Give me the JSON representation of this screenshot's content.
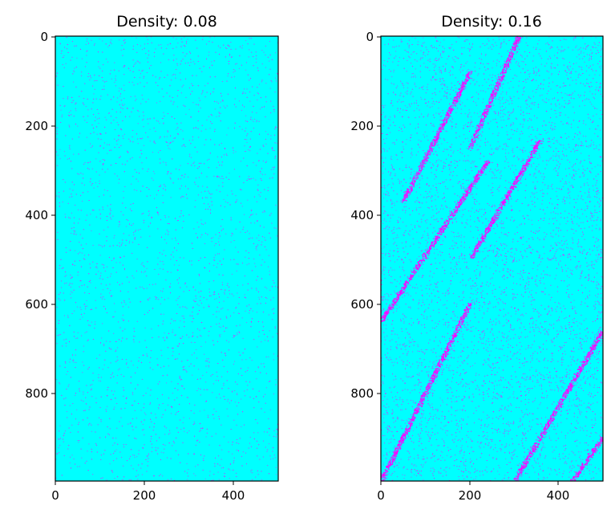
{
  "figure": {
    "background": "#ffffff"
  },
  "chart_data": [
    {
      "type": "heatmap",
      "title": "Density: 0.08",
      "density": 0.08,
      "colormap": {
        "empty": "#00ffff",
        "occupied": "#ff00ff"
      },
      "x_range": [
        0,
        500
      ],
      "y_range": [
        1000,
        0
      ],
      "y_inverted": true,
      "x_ticks": [
        0,
        200,
        400
      ],
      "y_ticks": [
        0,
        200,
        400,
        600,
        800
      ],
      "grid": false,
      "legend": "none",
      "pattern": "sparse uniform scatter",
      "bands": []
    },
    {
      "type": "heatmap",
      "title": "Density: 0.16",
      "density": 0.16,
      "colormap": {
        "empty": "#00ffff",
        "occupied": "#ff00ff"
      },
      "x_range": [
        0,
        500
      ],
      "y_range": [
        1000,
        0
      ],
      "y_inverted": true,
      "x_ticks": [
        0,
        200,
        400
      ],
      "y_ticks": [
        0,
        200,
        400,
        600,
        800
      ],
      "grid": false,
      "legend": "none",
      "pattern": "scatter with diagonal jam bands",
      "bands": [
        {
          "x0": 0,
          "y0": 1000,
          "x1": 200,
          "y1": 600
        },
        {
          "x0": 0,
          "y0": 640,
          "x1": 240,
          "y1": 280
        },
        {
          "x0": 50,
          "y0": 370,
          "x1": 200,
          "y1": 80
        },
        {
          "x0": 200,
          "y0": 250,
          "x1": 310,
          "y1": 0
        },
        {
          "x0": 200,
          "y0": 500,
          "x1": 360,
          "y1": 230
        },
        {
          "x0": 300,
          "y0": 1000,
          "x1": 500,
          "y1": 660
        },
        {
          "x0": 430,
          "y0": 1000,
          "x1": 500,
          "y1": 900
        }
      ]
    }
  ]
}
